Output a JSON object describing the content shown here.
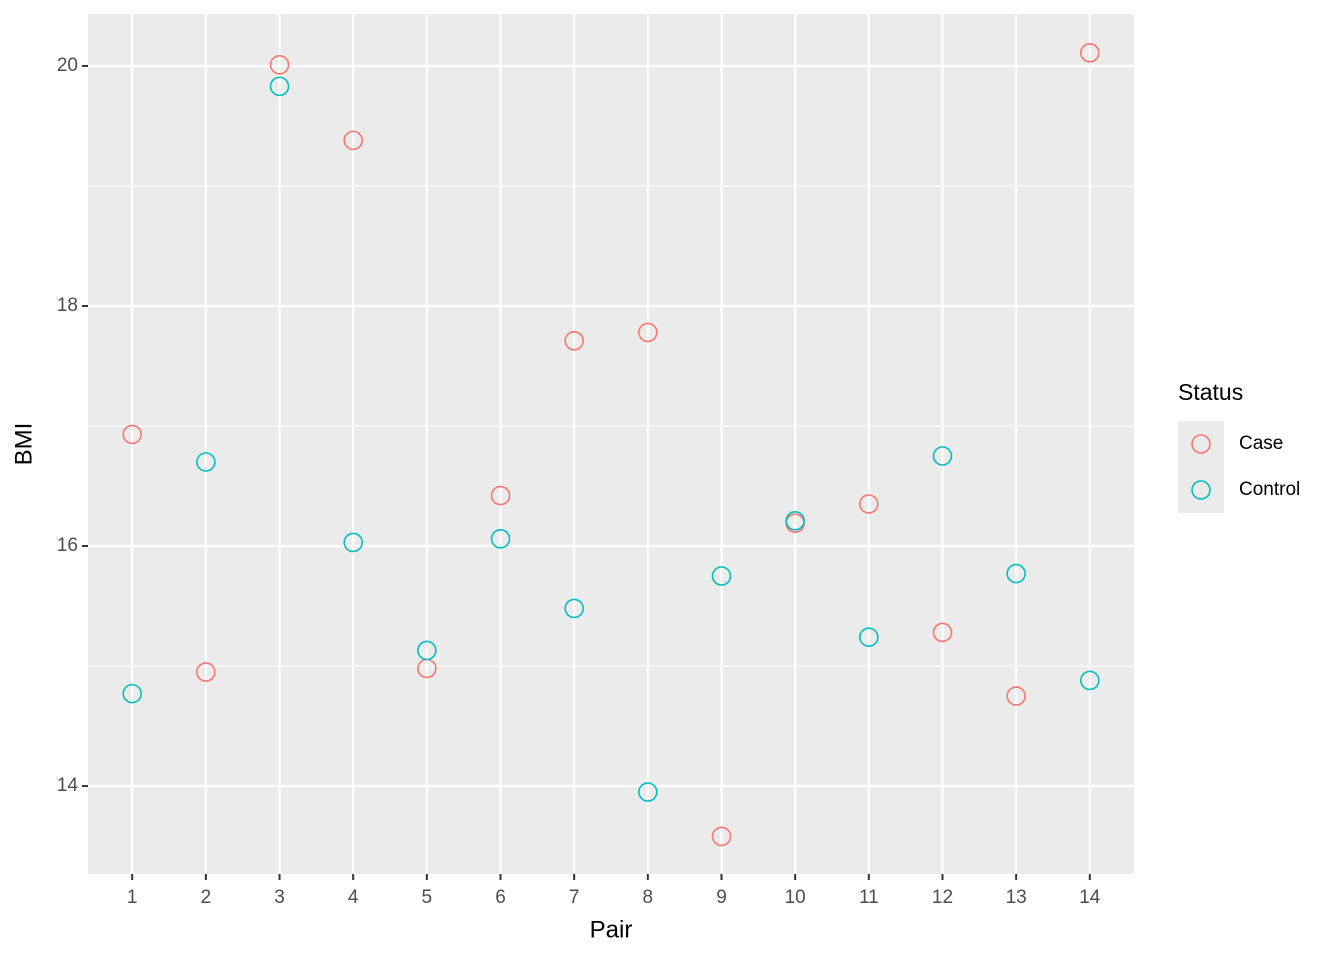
{
  "chart_data": {
    "type": "scatter",
    "x_label": "Pair",
    "y_label": "BMI",
    "legend_title": "Status",
    "x": [
      1,
      2,
      3,
      4,
      5,
      6,
      7,
      8,
      9,
      10,
      11,
      12,
      13,
      14
    ],
    "series": [
      {
        "name": "Case",
        "color": "#F8766D",
        "values": [
          16.93,
          14.95,
          20.01,
          19.38,
          14.98,
          16.42,
          17.71,
          17.78,
          13.58,
          16.19,
          16.35,
          15.28,
          14.75,
          20.11
        ]
      },
      {
        "name": "Control",
        "color": "#00BFC4",
        "values": [
          14.77,
          16.7,
          19.83,
          16.03,
          15.13,
          16.06,
          15.48,
          13.95,
          15.75,
          16.21,
          15.24,
          16.75,
          15.77,
          14.88
        ]
      }
    ],
    "xlim": [
      0.4,
      14.6
    ],
    "xticks": [
      1,
      2,
      3,
      4,
      5,
      6,
      7,
      8,
      9,
      10,
      11,
      12,
      13,
      14
    ],
    "ylim": [
      13.267,
      20.433
    ],
    "yticks": [
      14,
      16,
      18,
      20
    ],
    "grid": true,
    "legend": "right"
  }
}
